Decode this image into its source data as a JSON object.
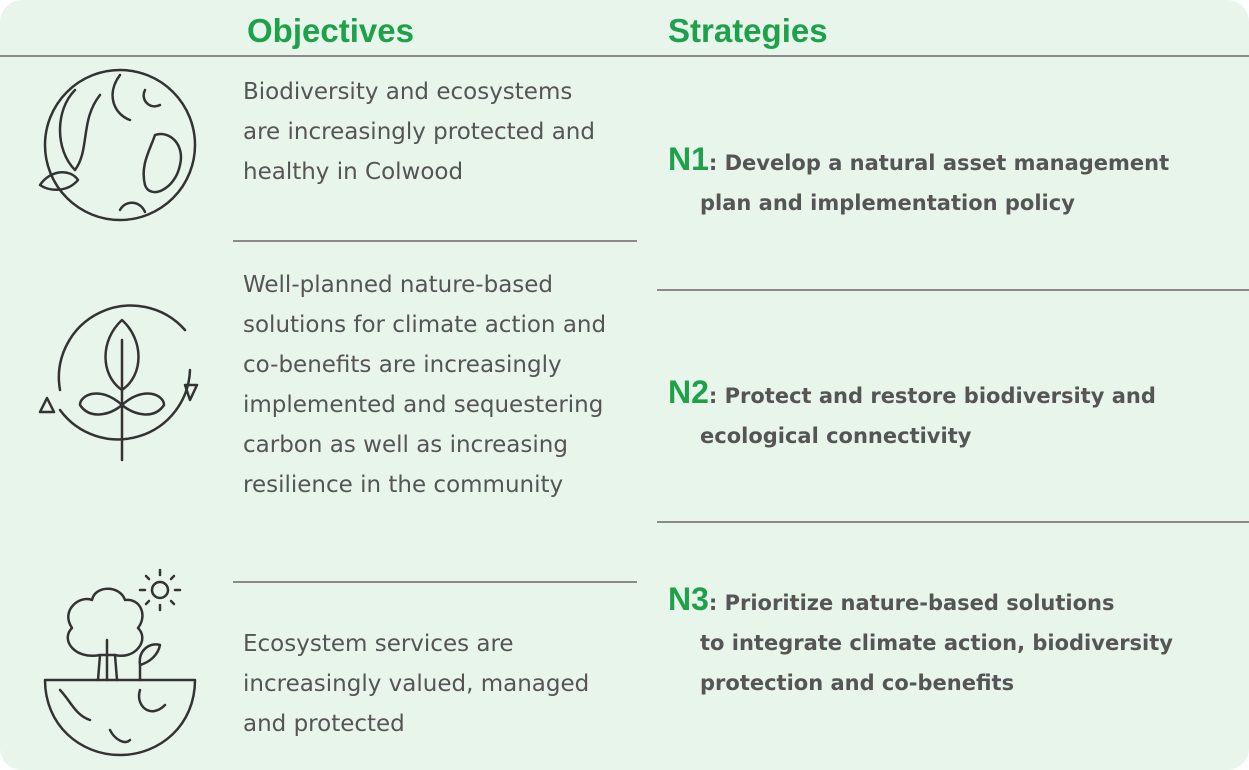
{
  "header": {
    "objectives_title": "Objectives",
    "strategies_title": "Strategies"
  },
  "objectives": [
    {
      "lines": [
        "Biodiversity and ecosystems",
        "are increasingly protected and",
        "healthy in Colwood"
      ]
    },
    {
      "lines": [
        "Well-planned nature-based",
        "solutions for climate action and",
        "co-benefits are increasingly",
        "implemented and sequestering",
        "carbon as well as increasing",
        "resilience in the community"
      ]
    },
    {
      "lines": [
        "Ecosystem services are",
        "increasingly valued, managed",
        "and protected"
      ]
    }
  ],
  "strategies": [
    {
      "code": "N1",
      "lines": [
        ": Develop a natural asset management",
        "plan and implementation policy"
      ]
    },
    {
      "code": "N2",
      "lines": [
        ":  Protect and restore biodiversity and",
        "ecological connectivity"
      ]
    },
    {
      "code": "N3",
      "lines": [
        ": Prioritize nature-based solutions",
        "to integrate climate action, biodiversity",
        "protection and co-benefits"
      ]
    }
  ]
}
